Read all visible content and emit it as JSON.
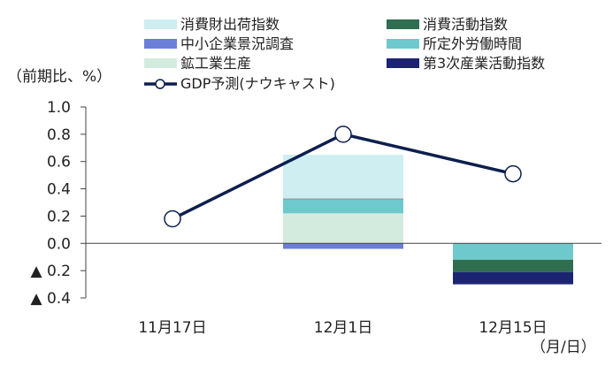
{
  "chart_data": {
    "type": "bar",
    "stacked": true,
    "y_unit_label": "（前期比、%）",
    "x_unit_label": "（月/日）",
    "categories": [
      "11月17日",
      "12月1日",
      "12月15日"
    ],
    "ylim": [
      -0.4,
      1.0
    ],
    "y_ticks": [
      {
        "value": 1.0,
        "label": "1.0"
      },
      {
        "value": 0.8,
        "label": "0.8"
      },
      {
        "value": 0.6,
        "label": "0.6"
      },
      {
        "value": 0.4,
        "label": "0.4"
      },
      {
        "value": 0.2,
        "label": "0.2"
      },
      {
        "value": 0.0,
        "label": "0.0"
      },
      {
        "value": -0.2,
        "label": "▲ 0.2"
      },
      {
        "value": -0.4,
        "label": "▲ 0.4"
      }
    ],
    "grid": false,
    "legend_placement": "top",
    "series": [
      {
        "name": "鉱工業生産",
        "color": "#d3ebde",
        "values": [
          0,
          0.22,
          0
        ]
      },
      {
        "name": "所定外労働時間",
        "color": "#6ec9cc",
        "values": [
          0,
          0.1,
          -0.12
        ]
      },
      {
        "name": "消費財出荷指数",
        "color": "#cfeef2",
        "values": [
          0,
          0.33,
          0
        ]
      },
      {
        "name": "中小企業景況調査",
        "color": "#6b7fd8",
        "values": [
          0,
          -0.04,
          0
        ]
      },
      {
        "name": "消費活動指数",
        "color": "#2f6e50",
        "values": [
          0,
          0,
          -0.09
        ]
      },
      {
        "name": "第3次産業活動指数",
        "color": "#1c2472",
        "values": [
          0,
          0,
          -0.09
        ]
      }
    ],
    "line": {
      "name": "GDP予測(ナウキャスト)",
      "color": "#0d1f4e",
      "values": [
        0.18,
        0.8,
        0.51
      ]
    },
    "legend_order": [
      "消費財出荷指数",
      "消費活動指数",
      "中小企業景況調査",
      "所定外労働時間",
      "鉱工業生産",
      "第3次産業活動指数",
      "GDP予測(ナウキャスト)"
    ]
  }
}
